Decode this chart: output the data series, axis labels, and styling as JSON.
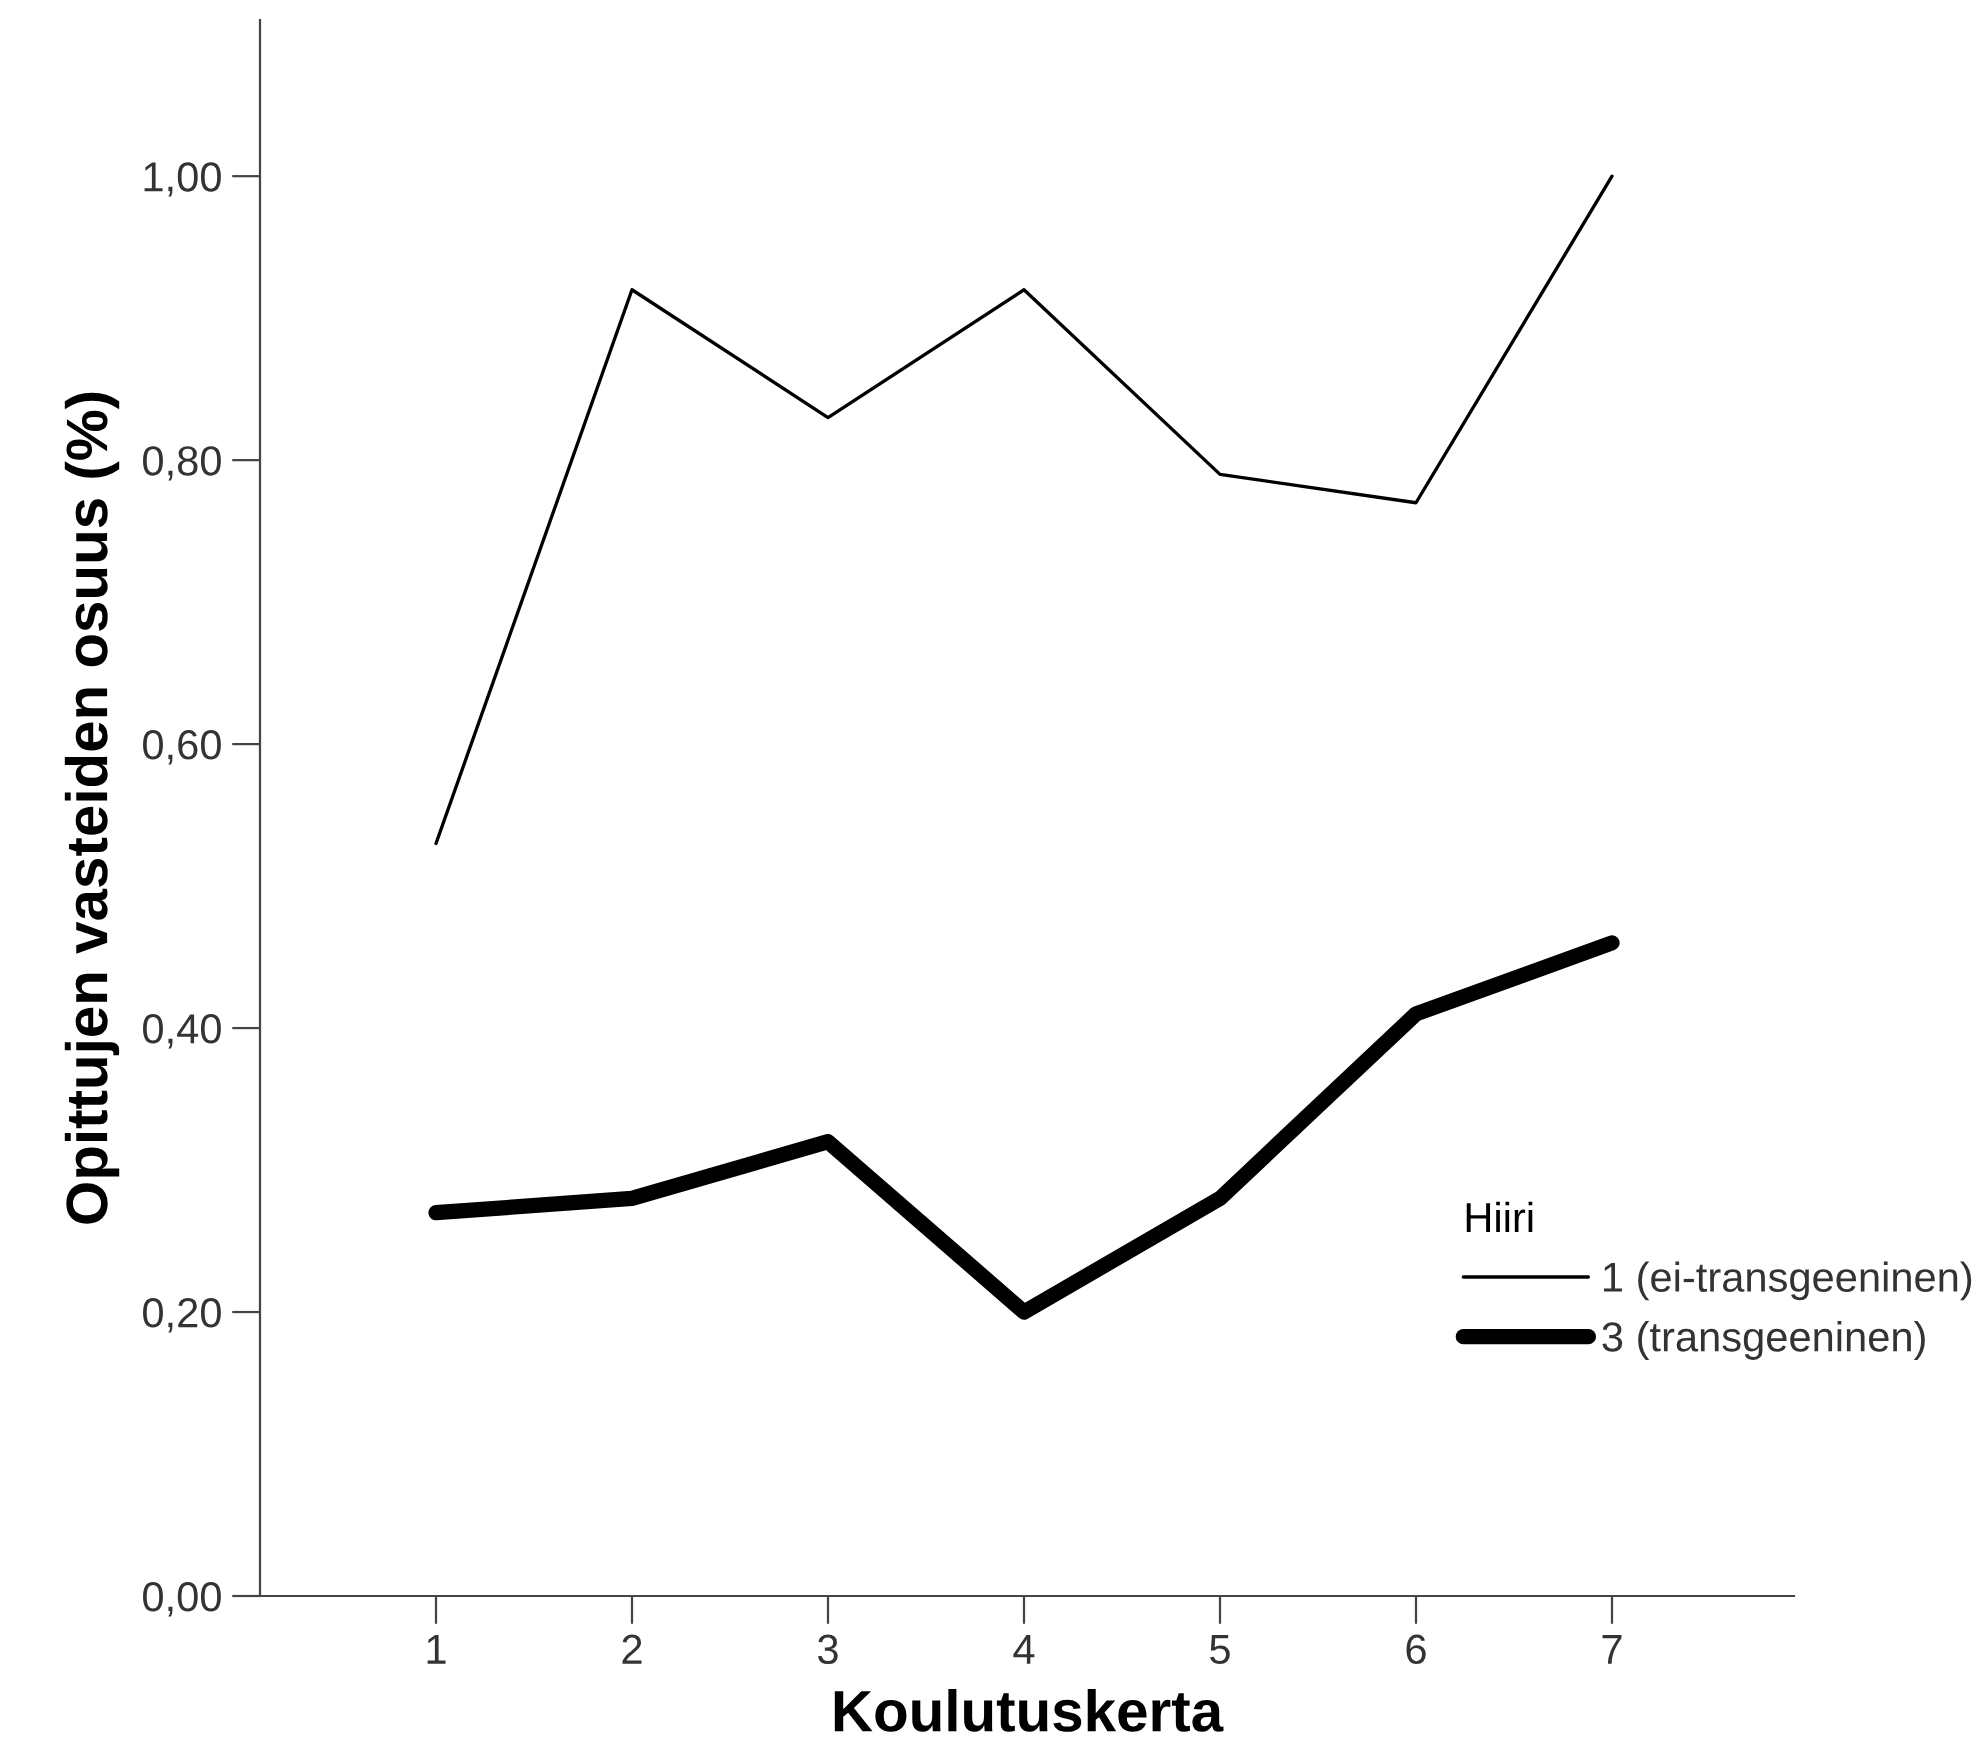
{
  "chart_data": {
    "type": "line",
    "xlabel": "Koulutuskerta",
    "ylabel": "Opittujen vasteiden osuus (%)",
    "legend_title": "Hiiri",
    "legend": "right",
    "categories": [
      "1",
      "2",
      "3",
      "4",
      "5",
      "6",
      "7"
    ],
    "series": [
      {
        "name": "1 (ei-transgeeninen)",
        "color": "#000000",
        "values": [
          0.53,
          0.92,
          0.83,
          0.92,
          0.79,
          0.77,
          1.0
        ]
      },
      {
        "name": "3 (transgeeninen)",
        "color": "#000000",
        "values": [
          0.27,
          0.28,
          0.32,
          0.2,
          0.28,
          0.41,
          0.46
        ]
      }
    ],
    "ylim": [
      0,
      1.11
    ],
    "yticks": [
      {
        "value": 0,
        "label": "0,00"
      },
      {
        "value": 0.2,
        "label": "0,20"
      },
      {
        "value": 0.4,
        "label": "0,40"
      },
      {
        "value": 0.6,
        "label": "0,60"
      },
      {
        "value": 0.8,
        "label": "0,80"
      },
      {
        "value": 1.0,
        "label": "1,00"
      }
    ],
    "grid": false,
    "marker": "none",
    "line_style": "solid"
  }
}
